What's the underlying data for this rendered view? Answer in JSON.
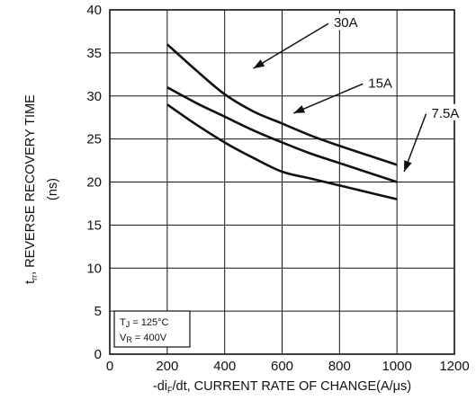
{
  "chart_data": {
    "type": "line",
    "x_ticks": [
      0,
      200,
      400,
      600,
      800,
      1000,
      1200
    ],
    "y_ticks": [
      0,
      5,
      10,
      15,
      20,
      25,
      30,
      35,
      40
    ],
    "xlim": [
      0,
      1200
    ],
    "ylim": [
      0,
      40
    ],
    "grid": true,
    "xlabel": {
      "prefix": "-di",
      "sub": "F",
      "suffix": "/dt, CURRENT RATE OF CHANGE(A/μs)"
    },
    "ylabel": {
      "line1_prefix": "t",
      "line1_sub": "rr",
      "line1_suffix": ", REVERSE RECOVERY TIME",
      "line2": "(ns)"
    },
    "series": [
      {
        "name": "30A",
        "x": [
          200,
          300,
          400,
          500,
          600,
          700,
          800,
          900,
          1000
        ],
        "y": [
          36,
          33,
          30.2,
          28.2,
          26.8,
          25.4,
          24.2,
          23.1,
          22.0
        ]
      },
      {
        "name": "15A",
        "x": [
          200,
          300,
          400,
          500,
          600,
          700,
          800,
          900,
          1000
        ],
        "y": [
          31,
          29.2,
          27.6,
          26.0,
          24.6,
          23.3,
          22.2,
          21.1,
          20.0
        ]
      },
      {
        "name": "7.5A",
        "x": [
          200,
          300,
          400,
          500,
          600,
          700,
          800,
          900,
          1000
        ],
        "y": [
          29,
          26.7,
          24.6,
          22.8,
          21.2,
          20.4,
          19.6,
          18.8,
          18.0
        ]
      }
    ],
    "annotations": [
      {
        "text": "30A",
        "label_at": [
          780,
          38.2
        ],
        "arrow_to": [
          500,
          33.2
        ]
      },
      {
        "text": "15A",
        "label_at": [
          900,
          31.2
        ],
        "arrow_to": [
          640,
          28.0
        ]
      },
      {
        "text": "7.5A",
        "label_at": [
          1120,
          27.7
        ],
        "arrow_to": [
          1025,
          21.2
        ]
      }
    ],
    "conditions": {
      "tj_prefix": "T",
      "tj_sub": "J",
      "tj_value": " = 125°C",
      "vr_prefix": "V",
      "vr_sub": "R",
      "vr_value": " = 400V"
    }
  }
}
